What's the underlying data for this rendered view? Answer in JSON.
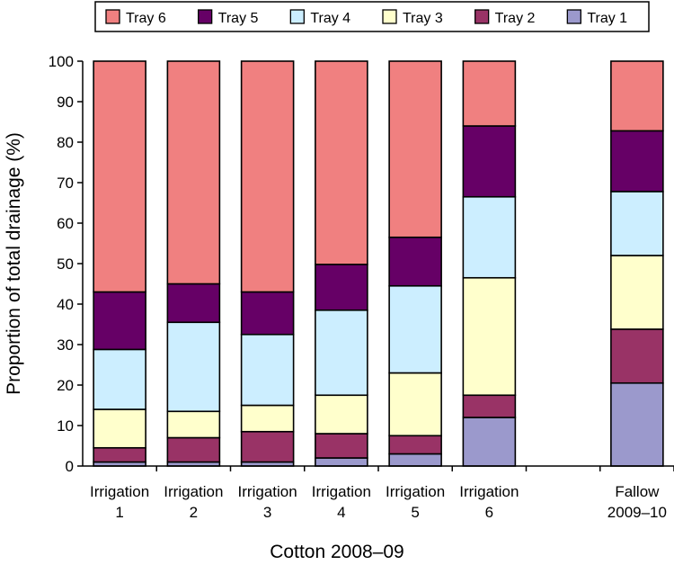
{
  "chart_data": {
    "type": "bar",
    "stacked": true,
    "xlabel": "Cotton 2008–09",
    "ylabel": "Proportion of total drainage (%)",
    "ylim": [
      0,
      100
    ],
    "yticks": [
      0,
      10,
      20,
      30,
      40,
      50,
      60,
      70,
      80,
      90,
      100
    ],
    "categories": [
      [
        "Irrigation",
        "1"
      ],
      [
        "Irrigation",
        "2"
      ],
      [
        "Irrigation",
        "3"
      ],
      [
        "Irrigation",
        "4"
      ],
      [
        "Irrigation",
        "5"
      ],
      [
        "Irrigation",
        "6"
      ],
      [
        "",
        ""
      ],
      [
        "Fallow",
        "2009–10"
      ]
    ],
    "legend_position": "top",
    "series": [
      {
        "name": "Tray 1",
        "color": "#9b99cc",
        "values": [
          1,
          1,
          1,
          2,
          3,
          12,
          null,
          20.5
        ]
      },
      {
        "name": "Tray 2",
        "color": "#993366",
        "values": [
          3.5,
          6,
          7.5,
          6,
          4.5,
          5.5,
          null,
          13.3
        ]
      },
      {
        "name": "Tray 3",
        "color": "#ffffcc",
        "values": [
          9.5,
          6.5,
          6.5,
          9.5,
          15.5,
          29,
          null,
          18.2
        ]
      },
      {
        "name": "Tray 4",
        "color": "#cceeff",
        "values": [
          14.8,
          22,
          17.5,
          21,
          21.5,
          20,
          null,
          15.8
        ]
      },
      {
        "name": "Tray 5",
        "color": "#660066",
        "values": [
          14.2,
          9.5,
          10.5,
          11.3,
          12,
          17.5,
          null,
          15
        ]
      },
      {
        "name": "Tray 6",
        "color": "#f08080",
        "values": [
          57,
          55,
          57,
          50.2,
          43.5,
          16,
          null,
          17.2
        ]
      }
    ],
    "legend_order": [
      "Tray 6",
      "Tray 5",
      "Tray 4",
      "Tray 3",
      "Tray 2",
      "Tray 1"
    ]
  }
}
